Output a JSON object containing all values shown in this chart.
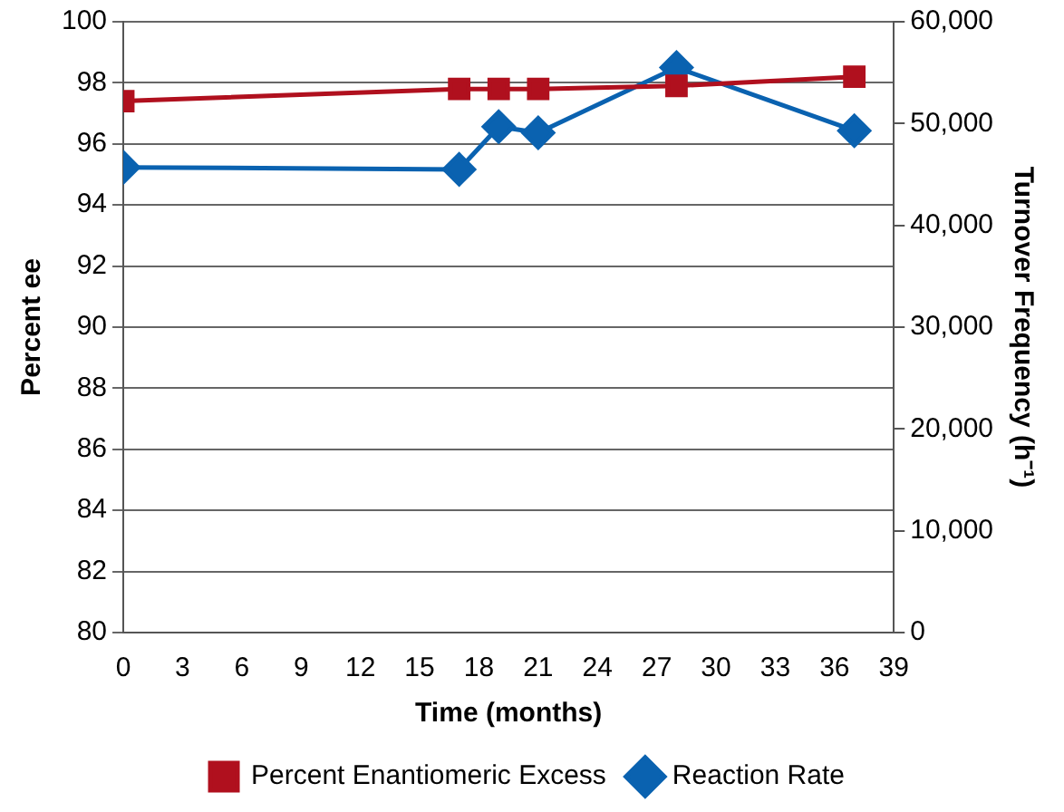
{
  "chart_data": {
    "type": "line",
    "xlabel": "Time (months)",
    "ylabel": "Percent ee",
    "y2label": "Turnover Frequency (h⁻¹)",
    "x": [
      0,
      17,
      19,
      21,
      28,
      37
    ],
    "series": [
      {
        "name": "Percent Enantiomeric Excess",
        "color": "#b0101e",
        "values": [
          97.4,
          97.8,
          97.8,
          97.8,
          97.9,
          98.2
        ],
        "marker": "square"
      },
      {
        "name": "Reaction Rate",
        "color": "#0a62b0",
        "values": [
          45700,
          45500,
          49700,
          49100,
          55500,
          49300
        ],
        "axis": "y2",
        "marker": "diamond"
      }
    ],
    "xlim": [
      0,
      39
    ],
    "xticks": [
      0,
      3,
      6,
      9,
      12,
      15,
      18,
      21,
      24,
      27,
      30,
      33,
      36,
      39
    ],
    "ylim": [
      80,
      100
    ],
    "yticks": [
      80,
      82,
      84,
      86,
      88,
      90,
      92,
      94,
      96,
      98,
      100
    ],
    "y2lim": [
      0,
      60000
    ],
    "y2ticks": [
      0,
      {
        "value": 10000,
        "label": "10,000"
      },
      {
        "value": 20000,
        "label": "20,000"
      },
      {
        "value": 30000,
        "label": "30,000"
      },
      {
        "value": 40000,
        "label": "40,000"
      },
      {
        "value": 50000,
        "label": "50,000"
      },
      {
        "value": 60000,
        "label": "60,000"
      }
    ],
    "grid": "y",
    "legend": "bottom",
    "line_style": "solid"
  }
}
